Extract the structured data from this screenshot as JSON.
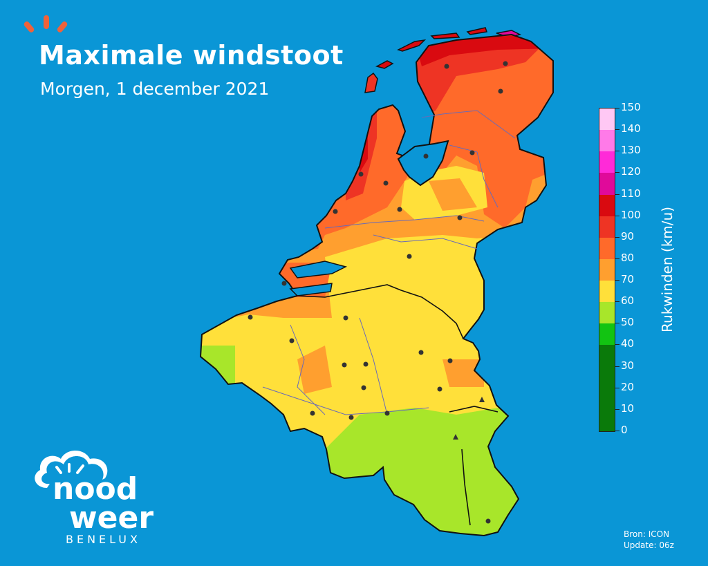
{
  "header": {
    "title": "Maximale windstoot",
    "subtitle": "Morgen, 1 december 2021"
  },
  "colorbar": {
    "label": "Rukwinden (km/u)",
    "ticks": [
      "0",
      "10",
      "20",
      "30",
      "40",
      "50",
      "60",
      "70",
      "80",
      "90",
      "100",
      "110",
      "120",
      "130",
      "140",
      "150"
    ],
    "bands": [
      {
        "from": 0,
        "to": 40,
        "color": "#0a7a0a"
      },
      {
        "from": 40,
        "to": 50,
        "color": "#12c412"
      },
      {
        "from": 50,
        "to": 60,
        "color": "#a8e62a"
      },
      {
        "from": 60,
        "to": 70,
        "color": "#ffe03a"
      },
      {
        "from": 70,
        "to": 80,
        "color": "#ff9f2f"
      },
      {
        "from": 80,
        "to": 90,
        "color": "#ff6a2a"
      },
      {
        "from": 90,
        "to": 100,
        "color": "#ee3424"
      },
      {
        "from": 100,
        "to": 110,
        "color": "#d90a10"
      },
      {
        "from": 110,
        "to": 120,
        "color": "#e00a9a"
      },
      {
        "from": 120,
        "to": 130,
        "color": "#ff2ad8"
      },
      {
        "from": 130,
        "to": 140,
        "color": "#ff7ae8"
      },
      {
        "from": 140,
        "to": 150,
        "color": "#ffc8f4"
      }
    ]
  },
  "source": {
    "line1": "Bron: ICON",
    "line2": "Update: 06z"
  },
  "logo": {
    "word1": "nood",
    "word2": "weer",
    "sub": "BENELUX"
  },
  "colors": {
    "sea": "#0a96d6",
    "accent": "#f0623a"
  }
}
